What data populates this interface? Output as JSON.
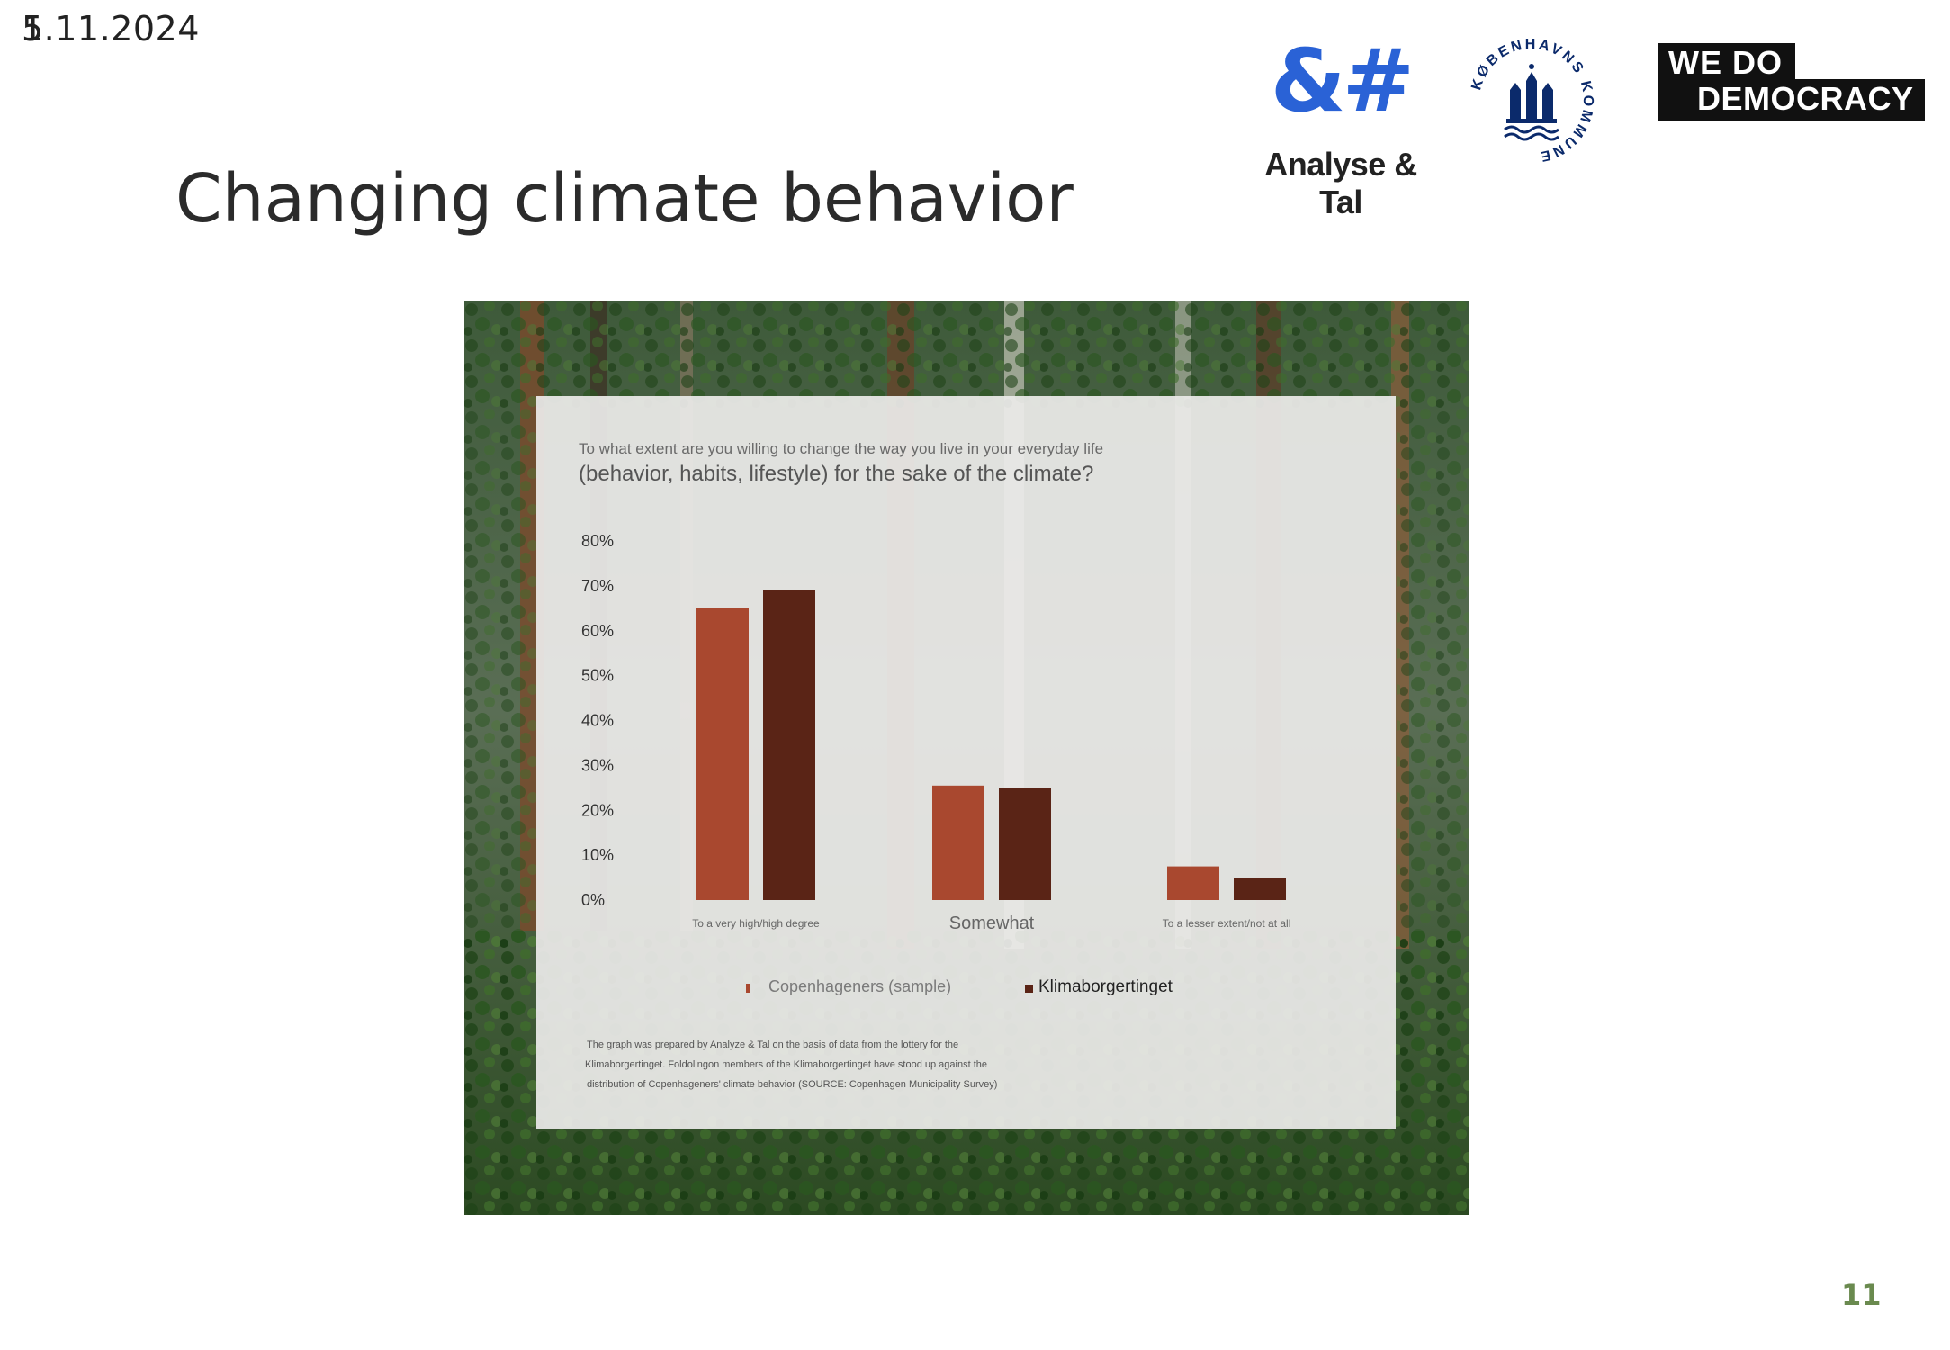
{
  "header": {
    "date": "5.11.2024",
    "date_overlap_glyph": "1",
    "title": "Changing climate behavior",
    "page_number": "11"
  },
  "logos": {
    "analyse_glyph": "&#",
    "analyse_text": "Analyse & Tal",
    "kommune_text": "KØBENHAVNS KOMMUNE",
    "wdd_line1": "WE DO",
    "wdd_line2": "DEMOCRACY"
  },
  "colors": {
    "accent_blue": "#2a62d6",
    "series_sample": "#a9482f",
    "series_klima": "#5a2416",
    "page_number": "#6a8a4f"
  },
  "chart_data": {
    "type": "bar",
    "title": "(behavior, habits, lifestyle) for the sake of the climate?",
    "subtitle": "To what extent are you willing to change the way you live in your everyday life",
    "categories": [
      "To a very high/high degree",
      "Somewhat",
      "To a lesser extent/not at all"
    ],
    "series": [
      {
        "name": "Copenhageners (sample)",
        "values": [
          65,
          25.5,
          7.5
        ],
        "color": "#a9482f"
      },
      {
        "name": "Klimaborgertinget",
        "values": [
          69,
          25,
          5
        ],
        "color": "#5a2416"
      }
    ],
    "yticks": [
      "0%",
      "10%",
      "20%",
      "30%",
      "40%",
      "50%",
      "60%",
      "70%",
      "80%"
    ],
    "ylim": [
      0,
      80
    ],
    "legend_placement": "bottom",
    "footnote_lines": [
      "The graph was prepared by Analyze & Tal on the basis of data from the lottery for the",
      "Klimaborgertinget. Foldolingon members of the Klimaborgertinget have stood up against the",
      "distribution of Copenhageners' climate behavior (SOURCE: Copenhagen Municipality Survey)"
    ]
  }
}
